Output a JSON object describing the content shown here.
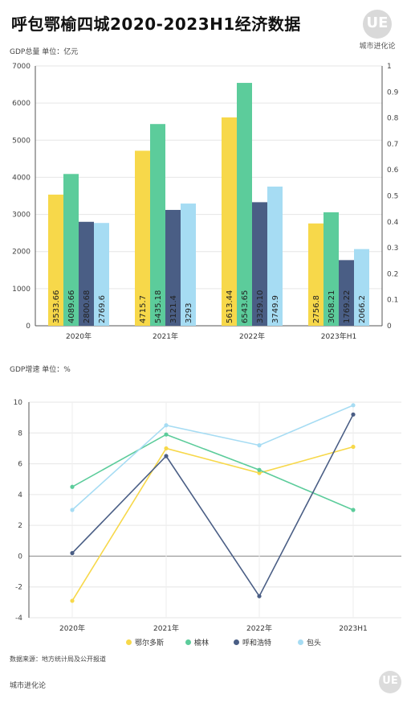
{
  "header": {
    "title": "呼包鄂榆四城2020-2023H1经济数据",
    "logo_text": "UE",
    "brand": "城市进化论"
  },
  "unit_gdp": "GDP总量 单位：亿元",
  "unit_growth": "GDP增速 单位：%",
  "source": "数据来源：地方统计局及公开报道",
  "footer_brand": "城市进化论",
  "colors": {
    "鄂尔多斯": "#f7d84a",
    "榆林": "#5ccc9b",
    "呼和浩特": "#4a5e85",
    "包头": "#a6dcf3"
  },
  "chart_data": [
    {
      "type": "bar",
      "categories": [
        "2020年",
        "2021年",
        "2022年",
        "2023年H1"
      ],
      "series": [
        {
          "name": "鄂尔多斯",
          "values": [
            3533.66,
            4715.7,
            5613.44,
            2756.8
          ],
          "labels": [
            "3533.66",
            "4715.7",
            "5613.44",
            "2756.8"
          ]
        },
        {
          "name": "榆林",
          "values": [
            4089.66,
            5435.18,
            6543.65,
            3058.21
          ],
          "labels": [
            "4089.66",
            "5435.18",
            "6543.65",
            "3058.21"
          ]
        },
        {
          "name": "呼和浩特",
          "values": [
            2800.68,
            3121.4,
            3329.1,
            1769.22
          ],
          "labels": [
            "2800.68",
            "3121.4",
            "3329.10",
            "1769.22"
          ]
        },
        {
          "name": "包头",
          "values": [
            2769.6,
            3293,
            3749.9,
            2066.2
          ],
          "labels": [
            "2769.6",
            "3293",
            "3749.9",
            "2066.2"
          ]
        }
      ],
      "ylim": [
        0,
        7000
      ],
      "yticks": [
        "0",
        "1000",
        "2000",
        "3000",
        "4000",
        "5000",
        "6000",
        "7000"
      ],
      "y2lim": [
        0,
        1
      ],
      "y2ticks": [
        "0",
        "0.1",
        "0.2",
        "0.3",
        "0.4",
        "0.5",
        "0.6",
        "0.7",
        "0.8",
        "0.9",
        "1"
      ]
    },
    {
      "type": "line",
      "categories": [
        "2020年",
        "2021年",
        "2022年",
        "2023H1"
      ],
      "series": [
        {
          "name": "鄂尔多斯",
          "values": [
            -2.9,
            7.0,
            5.4,
            7.1
          ]
        },
        {
          "name": "榆林",
          "values": [
            4.5,
            7.9,
            5.6,
            3.0
          ]
        },
        {
          "name": "呼和浩特",
          "values": [
            0.2,
            6.5,
            -2.6,
            9.2
          ]
        },
        {
          "name": "包头",
          "values": [
            3.0,
            8.5,
            7.2,
            9.8
          ]
        }
      ],
      "ylim": [
        -4,
        10
      ],
      "yticks": [
        "-4",
        "-2",
        "0",
        "2",
        "4",
        "6",
        "8",
        "10"
      ]
    }
  ],
  "legend": [
    "鄂尔多斯",
    "榆林",
    "呼和浩特",
    "包头"
  ]
}
